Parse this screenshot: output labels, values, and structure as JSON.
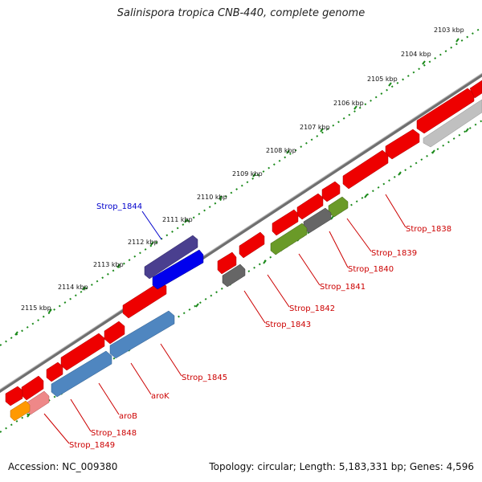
{
  "title": "Salinispora tropica CNB-440, complete genome",
  "footer": {
    "accession_label": "Accession: NC_009380",
    "stats_label": "Topology: circular; Length: 5,183,331 bp; Genes: 4,596"
  },
  "kbp_labels": [
    "2103 kbp",
    "2104 kbp",
    "2105 kbp",
    "2106 kbp",
    "2107 kbp",
    "2108 kbp",
    "2109 kbp",
    "2110 kbp",
    "2111 kbp",
    "2112 kbp",
    "2113 kbp",
    "2114 kbp",
    "2115 kbp"
  ],
  "gene_labels": [
    "Strop_1838",
    "Strop_1839",
    "Strop_1840",
    "Strop_1841",
    "Strop_1842",
    "Strop_1843",
    "Strop_1844",
    "Strop_1845",
    "aroK",
    "aroB",
    "Strop_1848",
    "Strop_1849"
  ],
  "colors": {
    "gene_red": "#ee0000",
    "label_red": "#cc0000",
    "label_blue": "#0000cc",
    "backbone": "#777777",
    "tick_green": "#1b8a1b",
    "dark_slate_blue": "#4a3f8f",
    "blue": "#0000ee",
    "steel_blue": "#4f86c0",
    "olive_green": "#6a9a28",
    "dark_gray": "#666666",
    "light_gray": "#c0c0c0",
    "pink": "#ee8888",
    "orange": "#ff9900"
  }
}
